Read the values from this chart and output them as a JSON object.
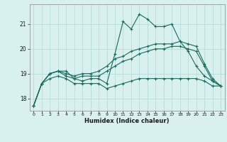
{
  "xlabel": "Humidex (Indice chaleur)",
  "background_color": "#d8f0ee",
  "grid_color": "#b0d8d4",
  "line_color": "#1a6b5a",
  "xlim": [
    -0.5,
    23.5
  ],
  "ylim": [
    17.5,
    21.8
  ],
  "yticks": [
    18,
    19,
    20,
    21
  ],
  "xticks": [
    0,
    1,
    2,
    3,
    4,
    5,
    6,
    7,
    8,
    9,
    10,
    11,
    12,
    13,
    14,
    15,
    16,
    17,
    18,
    19,
    20,
    21,
    22,
    23
  ],
  "series1_x": [
    0,
    1,
    2,
    3,
    4,
    5,
    6,
    7,
    8,
    9,
    10,
    11,
    12,
    13,
    14,
    15,
    16,
    17,
    18,
    19,
    20,
    21,
    22,
    23
  ],
  "series1_y": [
    17.7,
    18.6,
    19.0,
    19.1,
    19.1,
    18.8,
    18.7,
    18.8,
    18.8,
    18.6,
    19.8,
    21.1,
    20.8,
    21.4,
    21.2,
    20.9,
    20.9,
    21.0,
    20.3,
    19.9,
    19.3,
    18.9,
    18.7,
    18.5
  ],
  "series2_x": [
    0,
    1,
    2,
    3,
    4,
    5,
    6,
    7,
    8,
    9,
    10,
    11,
    12,
    13,
    14,
    15,
    16,
    17,
    18,
    19,
    20,
    21,
    22,
    23
  ],
  "series2_y": [
    17.7,
    18.6,
    19.0,
    19.1,
    19.0,
    18.9,
    19.0,
    19.0,
    19.1,
    19.3,
    19.6,
    19.7,
    19.9,
    20.0,
    20.1,
    20.2,
    20.2,
    20.2,
    20.3,
    20.2,
    20.1,
    19.4,
    18.8,
    18.5
  ],
  "series3_x": [
    0,
    1,
    2,
    3,
    4,
    5,
    6,
    7,
    8,
    9,
    10,
    11,
    12,
    13,
    14,
    15,
    16,
    17,
    18,
    19,
    20,
    21,
    22,
    23
  ],
  "series3_y": [
    17.7,
    18.6,
    19.0,
    19.1,
    18.9,
    18.8,
    18.9,
    18.9,
    18.9,
    19.1,
    19.3,
    19.5,
    19.6,
    19.8,
    19.9,
    20.0,
    20.0,
    20.1,
    20.1,
    20.0,
    19.9,
    19.3,
    18.7,
    18.5
  ],
  "series4_x": [
    0,
    1,
    2,
    3,
    4,
    5,
    6,
    7,
    8,
    9,
    10,
    11,
    12,
    13,
    14,
    15,
    16,
    17,
    18,
    19,
    20,
    21,
    22,
    23
  ],
  "series4_y": [
    17.7,
    18.6,
    18.8,
    18.9,
    18.8,
    18.6,
    18.6,
    18.6,
    18.6,
    18.4,
    18.5,
    18.6,
    18.7,
    18.8,
    18.8,
    18.8,
    18.8,
    18.8,
    18.8,
    18.8,
    18.8,
    18.7,
    18.5,
    18.5
  ]
}
